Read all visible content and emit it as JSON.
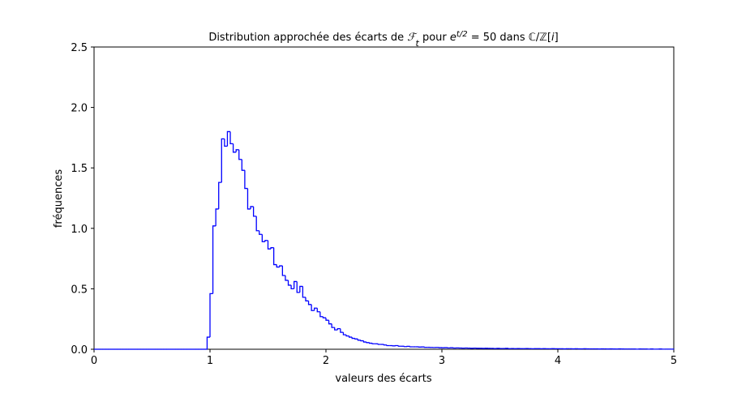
{
  "chart_data": {
    "type": "histogram",
    "title": [
      "Distribution approchée des écarts de ",
      "ℱ",
      "t",
      " pour ",
      "e",
      "t/2",
      " = 50 dans ℂ/ℤ[",
      "i",
      "]"
    ],
    "xlabel": "valeurs des écarts",
    "ylabel": "fréquences",
    "color": "#0000ff",
    "xlim": [
      0,
      5
    ],
    "ylim": [
      0,
      2.5
    ],
    "xticks": [
      0,
      1,
      2,
      3,
      4,
      5
    ],
    "yticks": [
      {
        "value": 0,
        "label": "0.0"
      },
      0.5,
      {
        "value": 1,
        "label": "1.0"
      },
      1.5,
      {
        "value": 2,
        "label": "2.0"
      },
      2.5
    ],
    "bins": [
      0,
      0.025,
      0.05,
      0.075,
      0.1,
      0.125,
      0.15,
      0.175,
      0.2,
      0.225,
      0.25,
      0.275,
      0.3,
      0.325,
      0.35,
      0.375,
      0.4,
      0.425,
      0.45,
      0.475,
      0.5,
      0.525,
      0.55,
      0.575,
      0.6,
      0.625,
      0.65,
      0.675,
      0.7,
      0.725,
      0.75,
      0.775,
      0.8,
      0.825,
      0.85,
      0.875,
      0.9,
      0.925,
      0.95,
      0.975,
      1,
      1.025,
      1.05,
      1.075,
      1.1,
      1.125,
      1.15,
      1.175,
      1.2,
      1.225,
      1.25,
      1.275,
      1.3,
      1.325,
      1.35,
      1.375,
      1.4,
      1.425,
      1.45,
      1.475,
      1.5,
      1.525,
      1.55,
      1.575,
      1.6,
      1.625,
      1.65,
      1.675,
      1.7,
      1.725,
      1.75,
      1.775,
      1.8,
      1.825,
      1.85,
      1.875,
      1.9,
      1.925,
      1.95,
      1.975,
      2,
      2.025,
      2.05,
      2.075,
      2.1,
      2.125,
      2.15,
      2.175,
      2.2,
      2.225,
      2.25,
      2.275,
      2.3,
      2.325,
      2.35,
      2.375,
      2.4,
      2.425,
      2.45,
      2.475,
      2.5,
      2.525,
      2.55,
      2.575,
      2.6,
      2.625,
      2.65,
      2.675,
      2.7,
      2.725,
      2.75,
      2.775,
      2.8,
      2.825,
      2.85,
      2.875,
      2.9,
      2.925,
      2.95,
      2.975,
      3,
      3.025,
      3.05,
      3.075,
      3.1,
      3.125,
      3.15,
      3.175,
      3.2,
      3.225,
      3.25,
      3.275,
      3.3,
      3.325,
      3.35,
      3.375,
      3.4,
      3.425,
      3.45,
      3.475,
      3.5,
      3.525,
      3.55,
      3.575,
      3.6,
      3.625,
      3.65,
      3.675,
      3.7,
      3.725,
      3.75,
      3.775,
      3.8,
      3.825,
      3.85,
      3.875,
      3.9,
      3.925,
      3.95,
      3.975,
      4,
      4.025,
      4.05,
      4.075,
      4.1,
      4.125,
      4.15,
      4.175,
      4.2,
      4.225,
      4.25,
      4.275,
      4.3,
      4.325,
      4.35,
      4.375,
      4.4,
      4.425,
      4.45,
      4.475,
      4.5,
      4.525,
      4.55,
      4.575,
      4.6,
      4.625,
      4.65,
      4.675,
      4.7,
      4.725,
      4.75,
      4.775,
      4.8,
      4.825,
      4.85,
      4.875,
      4.9,
      4.925,
      4.95,
      4.975,
      5
    ],
    "values": [
      0,
      0,
      0,
      0,
      0,
      0,
      0,
      0,
      0,
      0,
      0,
      0,
      0,
      0,
      0,
      0,
      0,
      0,
      0,
      0,
      0,
      0,
      0,
      0,
      0,
      0,
      0,
      0,
      0,
      0,
      0,
      0,
      0,
      0,
      0,
      0,
      0,
      0,
      0,
      0.1,
      0.46,
      1.02,
      1.16,
      1.38,
      1.74,
      1.68,
      1.8,
      1.7,
      1.63,
      1.65,
      1.57,
      1.48,
      1.33,
      1.16,
      1.18,
      1.1,
      0.98,
      0.95,
      0.89,
      0.9,
      0.83,
      0.84,
      0.7,
      0.68,
      0.69,
      0.61,
      0.57,
      0.53,
      0.5,
      0.56,
      0.47,
      0.52,
      0.43,
      0.4,
      0.37,
      0.32,
      0.34,
      0.31,
      0.27,
      0.26,
      0.24,
      0.21,
      0.18,
      0.16,
      0.17,
      0.14,
      0.12,
      0.11,
      0.1,
      0.09,
      0.085,
      0.075,
      0.07,
      0.06,
      0.055,
      0.05,
      0.045,
      0.045,
      0.04,
      0.04,
      0.035,
      0.03,
      0.03,
      0.028,
      0.03,
      0.025,
      0.025,
      0.022,
      0.024,
      0.02,
      0.02,
      0.02,
      0.018,
      0.019,
      0.016,
      0.016,
      0.015,
      0.014,
      0.015,
      0.013,
      0.012,
      0.013,
      0.011,
      0.012,
      0.01,
      0.011,
      0.01,
      0.009,
      0.01,
      0.009,
      0.008,
      0.009,
      0.008,
      0.008,
      0.007,
      0.008,
      0.007,
      0.007,
      0.006,
      0.007,
      0.006,
      0.006,
      0.007,
      0.005,
      0.006,
      0.005,
      0.006,
      0.005,
      0.005,
      0.006,
      0.005,
      0.004,
      0.005,
      0.005,
      0.004,
      0.005,
      0.004,
      0.004,
      0.005,
      0.004,
      0.004,
      0.004,
      0.003,
      0.004,
      0.004,
      0.003,
      0.004,
      0.003,
      0.003,
      0.004,
      0.003,
      0.003,
      0.003,
      0.003,
      0.002,
      0.003,
      0.003,
      0.002,
      0.003,
      0.002,
      0.002,
      0.003,
      0.002,
      0.002,
      0.002,
      0.002,
      0.002,
      0.001,
      0.002,
      0.002,
      0.002,
      0.001,
      0.002,
      0.001,
      0.001,
      0.002,
      0.001,
      0.001,
      0.001,
      0.001
    ]
  }
}
